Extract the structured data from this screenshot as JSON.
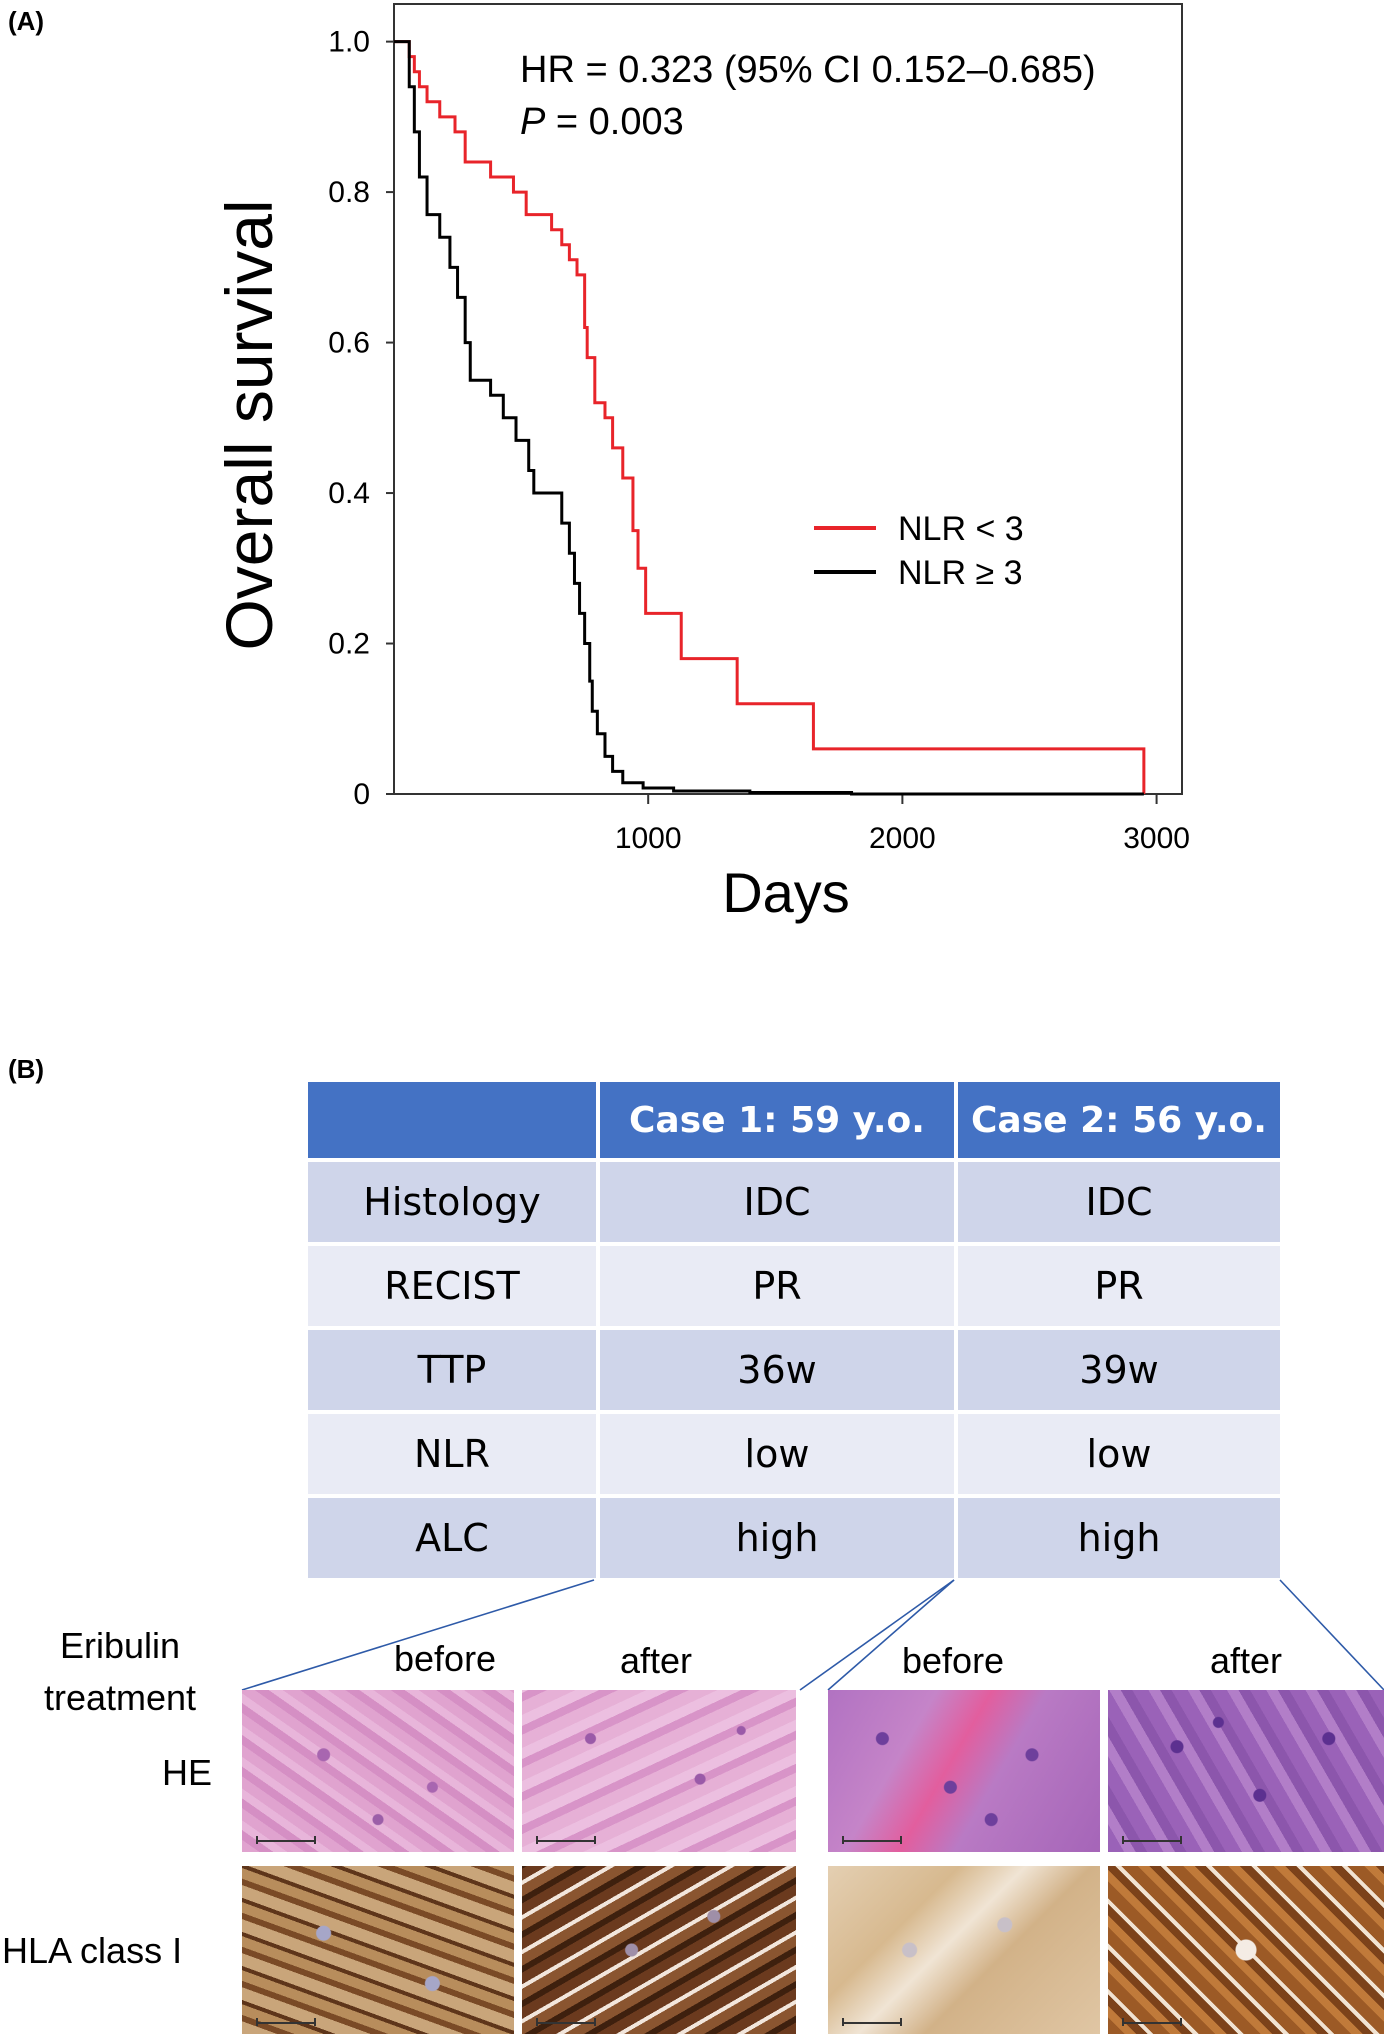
{
  "panel_a": {
    "label": "(A)",
    "annotation_hr": "HR = 0.323 (95% CI 0.152–0.685)",
    "annotation_p_italic": "P",
    "annotation_p_rest": " = 0.003",
    "colors": {
      "red": "#e8242a",
      "black": "#000000"
    }
  },
  "chart_data": {
    "type": "line",
    "step": true,
    "title": "",
    "xlabel": "Days",
    "ylabel": "Overall survival",
    "xlim": [
      0,
      3100
    ],
    "ylim": [
      0,
      1.05
    ],
    "x_ticks": [
      1000,
      2000,
      3000
    ],
    "y_ticks": [
      "0",
      "0.2",
      "0.4",
      "0.6",
      "0.8",
      "1.0"
    ],
    "grid": false,
    "legend_position": "right-middle",
    "series": [
      {
        "name": "NLR < 3",
        "color": "#e8242a",
        "points": [
          [
            0,
            1.0
          ],
          [
            50,
            1.0
          ],
          [
            60,
            0.98
          ],
          [
            80,
            0.96
          ],
          [
            100,
            0.94
          ],
          [
            130,
            0.92
          ],
          [
            180,
            0.9
          ],
          [
            240,
            0.88
          ],
          [
            280,
            0.84
          ],
          [
            380,
            0.82
          ],
          [
            470,
            0.8
          ],
          [
            520,
            0.77
          ],
          [
            600,
            0.77
          ],
          [
            620,
            0.75
          ],
          [
            660,
            0.73
          ],
          [
            690,
            0.71
          ],
          [
            720,
            0.69
          ],
          [
            750,
            0.62
          ],
          [
            760,
            0.58
          ],
          [
            790,
            0.52
          ],
          [
            830,
            0.5
          ],
          [
            860,
            0.46
          ],
          [
            900,
            0.42
          ],
          [
            940,
            0.35
          ],
          [
            960,
            0.3
          ],
          [
            990,
            0.24
          ],
          [
            1100,
            0.24
          ],
          [
            1130,
            0.18
          ],
          [
            1320,
            0.18
          ],
          [
            1350,
            0.12
          ],
          [
            1620,
            0.12
          ],
          [
            1650,
            0.06
          ],
          [
            2950,
            0.06
          ],
          [
            2950,
            0.0
          ]
        ]
      },
      {
        "name": "NLR ≥ 3",
        "color": "#000000",
        "points": [
          [
            0,
            1.0
          ],
          [
            50,
            1.0
          ],
          [
            60,
            0.94
          ],
          [
            80,
            0.88
          ],
          [
            100,
            0.82
          ],
          [
            130,
            0.77
          ],
          [
            180,
            0.74
          ],
          [
            220,
            0.7
          ],
          [
            250,
            0.66
          ],
          [
            280,
            0.6
          ],
          [
            300,
            0.55
          ],
          [
            380,
            0.53
          ],
          [
            430,
            0.5
          ],
          [
            480,
            0.47
          ],
          [
            530,
            0.43
          ],
          [
            550,
            0.4
          ],
          [
            640,
            0.4
          ],
          [
            660,
            0.36
          ],
          [
            690,
            0.32
          ],
          [
            710,
            0.28
          ],
          [
            730,
            0.24
          ],
          [
            750,
            0.2
          ],
          [
            770,
            0.15
          ],
          [
            780,
            0.11
          ],
          [
            800,
            0.08
          ],
          [
            830,
            0.05
          ],
          [
            860,
            0.03
          ],
          [
            900,
            0.015
          ],
          [
            980,
            0.008
          ],
          [
            1100,
            0.004
          ],
          [
            1400,
            0.002
          ],
          [
            1800,
            0.0
          ],
          [
            2950,
            0.0
          ]
        ]
      }
    ]
  },
  "panel_b": {
    "label": "(B)",
    "table": {
      "headers": [
        "",
        "Case 1: 59 y.o.",
        "Case 2: 56 y.o."
      ],
      "rows": [
        [
          "Histology",
          "IDC",
          "IDC"
        ],
        [
          "RECIST",
          "PR",
          "PR"
        ],
        [
          "TTP",
          "36w",
          "39w"
        ],
        [
          "NLR",
          "low",
          "low"
        ],
        [
          "ALC",
          "high",
          "high"
        ]
      ]
    },
    "eribulin_label_line1": "Eribulin",
    "eribulin_label_line2": "treatment",
    "before_label": "before",
    "after_label": "after",
    "he_label": "HE",
    "hla_label": "HLA class I",
    "stain_colors": {
      "he_pink": "#d98fc0",
      "he_purple": "#a066b8",
      "hla_dark": "#6b3a1e",
      "hla_light": "#c9a57a"
    }
  }
}
